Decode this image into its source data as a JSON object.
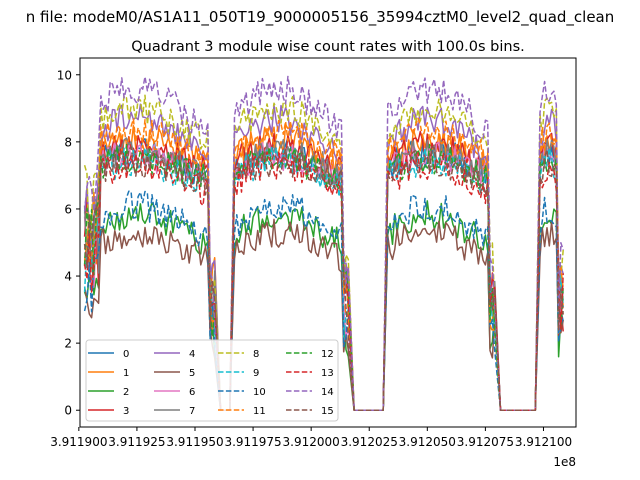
{
  "figure": {
    "suptitle": "n file: modeM0/AS1A11_050T19_9000005156_35994cztM0_level2_quad_clean"
  },
  "chart_data": {
    "type": "line",
    "title": "Quadrant 3 module wise count rates with 100.0s bins.",
    "xlabel": "",
    "ylabel": "",
    "x_offset_label": "1e8",
    "xlim": [
      391190050,
      391211400
    ],
    "ylim": [
      -0.5,
      10.5
    ],
    "grid": false,
    "legend_placement": "lower left",
    "legend_columns": 4,
    "x_ticks": [
      391190000,
      391192500,
      391195000,
      391197500,
      391200000,
      391202500,
      391205000,
      391207500,
      391210000
    ],
    "x_tick_labels": [
      "3.911900",
      "3.911925",
      "3.911950",
      "3.911975",
      "3.912000",
      "3.912025",
      "3.912050",
      "3.912075",
      "3.912100"
    ],
    "y_ticks": [
      0,
      2,
      4,
      6,
      8,
      10
    ],
    "y_tick_labels": [
      "0",
      "2",
      "4",
      "6",
      "8",
      "10"
    ],
    "x_segments": [
      [
        391190250,
        391195900
      ],
      [
        391196700,
        391201650
      ],
      [
        391203300,
        391207950
      ],
      [
        391209850,
        391210900
      ]
    ],
    "series": [
      {
        "name": "0",
        "color": "#1f77b4",
        "dash": "solid",
        "base": 7.3,
        "bump": 0.4
      },
      {
        "name": "1",
        "color": "#ff7f0e",
        "dash": "solid",
        "base": 7.6,
        "bump": 0.5
      },
      {
        "name": "2",
        "color": "#2ca02c",
        "dash": "solid",
        "base": 5.3,
        "bump": 0.5
      },
      {
        "name": "3",
        "color": "#d62728",
        "dash": "solid",
        "base": 7.4,
        "bump": 0.5
      },
      {
        "name": "4",
        "color": "#9467bd",
        "dash": "solid",
        "base": 8.0,
        "bump": 0.7
      },
      {
        "name": "5",
        "color": "#8c564b",
        "dash": "solid",
        "base": 4.8,
        "bump": 0.5
      },
      {
        "name": "6",
        "color": "#e377c2",
        "dash": "solid",
        "base": 7.2,
        "bump": 0.4
      },
      {
        "name": "7",
        "color": "#7f7f7f",
        "dash": "solid",
        "base": 7.3,
        "bump": 0.4
      },
      {
        "name": "8",
        "color": "#bcbd22",
        "dash": "dashed",
        "base": 8.4,
        "bump": 0.6
      },
      {
        "name": "9",
        "color": "#17becf",
        "dash": "dashed",
        "base": 7.0,
        "bump": 0.4
      },
      {
        "name": "10",
        "color": "#1f77b4",
        "dash": "dashed",
        "base": 5.5,
        "bump": 0.6
      },
      {
        "name": "11",
        "color": "#ff7f0e",
        "dash": "dashed",
        "base": 7.8,
        "bump": 0.5
      },
      {
        "name": "12",
        "color": "#2ca02c",
        "dash": "dashed",
        "base": 7.1,
        "bump": 0.4
      },
      {
        "name": "13",
        "color": "#d62728",
        "dash": "dashed",
        "base": 6.8,
        "bump": 0.5
      },
      {
        "name": "14",
        "color": "#9467bd",
        "dash": "dashed",
        "base": 8.8,
        "bump": 0.8
      },
      {
        "name": "15",
        "color": "#8c564b",
        "dash": "dashed",
        "base": 7.0,
        "bump": 0.4
      }
    ]
  }
}
